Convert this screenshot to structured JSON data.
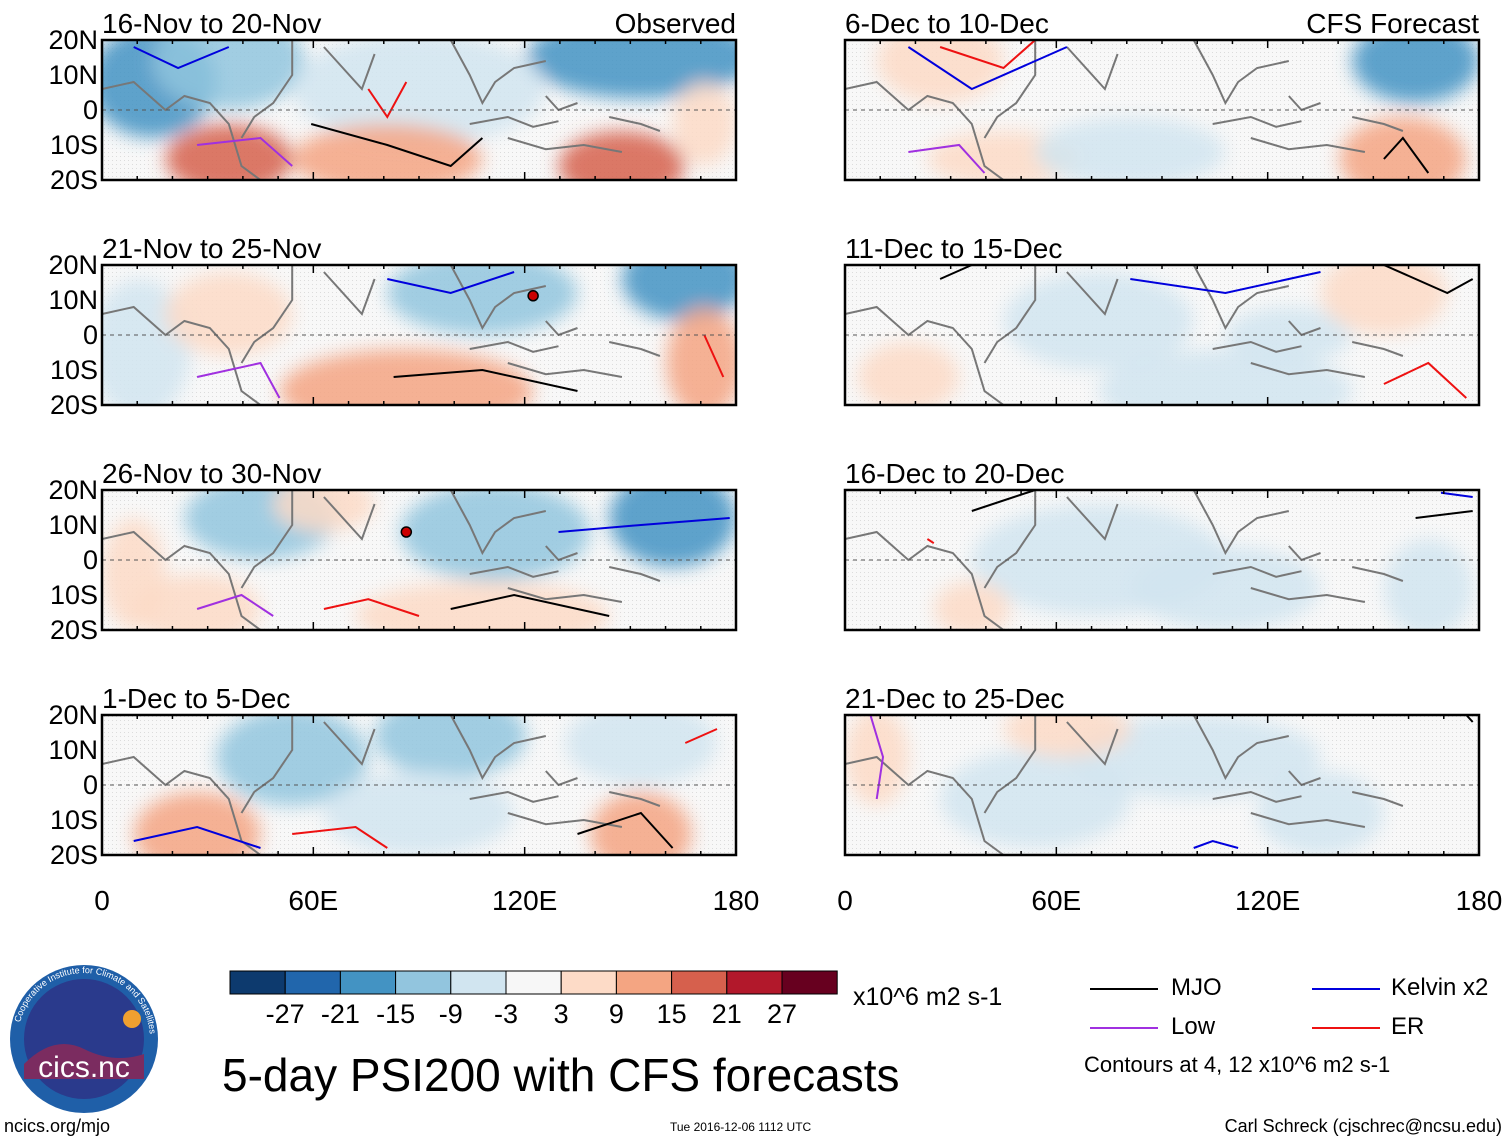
{
  "figure": {
    "title": "5-day PSI200 with CFS forecasts",
    "url": "ncics.org/mjo",
    "timestamp": "Tue 2016-12-06 1112 UTC",
    "author": "Carl Schreck (cjschrec@ncsu.edu)",
    "logo_text": "cics.nc",
    "logo_ring_text": "Cooperative Institute for Climate and Satellites"
  },
  "columns": {
    "left_header": "Observed",
    "right_header": "CFS Forecast"
  },
  "chart_data": [
    {
      "type": "heatmap",
      "panel_title": "16-Nov to 20-Nov",
      "source": "Observed",
      "xlabel": "",
      "ylabel": "",
      "x_ticks": [
        "0",
        "60E",
        "120E",
        "180"
      ],
      "y_ticks": [
        "20N",
        "10N",
        "0",
        "10S",
        "20S"
      ],
      "xlim": [
        0,
        180
      ],
      "ylim": [
        -20,
        20
      ]
    },
    {
      "type": "heatmap",
      "panel_title": "21-Nov to 25-Nov",
      "source": "Observed",
      "x_ticks": [
        "0",
        "60E",
        "120E",
        "180"
      ],
      "y_ticks": [
        "20N",
        "10N",
        "0",
        "10S",
        "20S"
      ],
      "xlim": [
        0,
        180
      ],
      "ylim": [
        -20,
        20
      ]
    },
    {
      "type": "heatmap",
      "panel_title": "26-Nov to 30-Nov",
      "source": "Observed",
      "x_ticks": [
        "0",
        "60E",
        "120E",
        "180"
      ],
      "y_ticks": [
        "20N",
        "10N",
        "0",
        "10S",
        "20S"
      ],
      "xlim": [
        0,
        180
      ],
      "ylim": [
        -20,
        20
      ]
    },
    {
      "type": "heatmap",
      "panel_title": "1-Dec to 5-Dec",
      "source": "Observed",
      "x_ticks": [
        "0",
        "60E",
        "120E",
        "180"
      ],
      "y_ticks": [
        "20N",
        "10N",
        "0",
        "10S",
        "20S"
      ],
      "xlim": [
        0,
        180
      ],
      "ylim": [
        -20,
        20
      ]
    },
    {
      "type": "heatmap",
      "panel_title": "6-Dec to 10-Dec",
      "source": "CFS Forecast",
      "x_ticks": [
        "0",
        "60E",
        "120E",
        "180"
      ],
      "y_ticks": [],
      "xlim": [
        0,
        180
      ],
      "ylim": [
        -20,
        20
      ]
    },
    {
      "type": "heatmap",
      "panel_title": "11-Dec to 15-Dec",
      "source": "CFS Forecast",
      "x_ticks": [
        "0",
        "60E",
        "120E",
        "180"
      ],
      "y_ticks": [],
      "xlim": [
        0,
        180
      ],
      "ylim": [
        -20,
        20
      ]
    },
    {
      "type": "heatmap",
      "panel_title": "16-Dec to 20-Dec",
      "source": "CFS Forecast",
      "x_ticks": [
        "0",
        "60E",
        "120E",
        "180"
      ],
      "y_ticks": [],
      "xlim": [
        0,
        180
      ],
      "ylim": [
        -20,
        20
      ]
    },
    {
      "type": "heatmap",
      "panel_title": "21-Dec to 25-Dec",
      "source": "CFS Forecast",
      "x_ticks": [
        "0",
        "60E",
        "120E",
        "180"
      ],
      "y_ticks": [],
      "xlim": [
        0,
        180
      ],
      "ylim": [
        -20,
        20
      ]
    }
  ],
  "colorbar": {
    "labels": [
      "-27",
      "-21",
      "-15",
      "-9",
      "-3",
      "3",
      "9",
      "15",
      "21",
      "27"
    ],
    "colors": [
      "#0d3a6e",
      "#2166ac",
      "#4393c3",
      "#92c5de",
      "#d1e5f0",
      "#f7f7f7",
      "#fddbc7",
      "#f4a582",
      "#d6604d",
      "#b2182b",
      "#67001f"
    ],
    "units": "x10^6 m2 s-1"
  },
  "legend": {
    "items": [
      {
        "label": "MJO",
        "color": "#000000"
      },
      {
        "label": "Kelvin x2",
        "color": "#0000dd"
      },
      {
        "label": "Low",
        "color": "#a030e0"
      },
      {
        "label": "ER",
        "color": "#ee1111"
      }
    ],
    "note": "Contours at 4, 12 x10^6 m2 s-1"
  }
}
